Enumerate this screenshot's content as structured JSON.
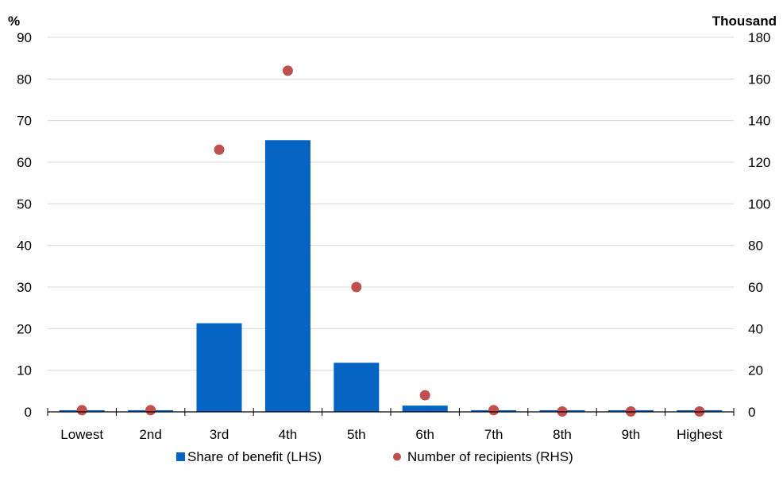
{
  "chart_data": {
    "type": "bar",
    "title": "",
    "left_unit": "%",
    "right_unit": "Thousand",
    "categories": [
      "Lowest",
      "2nd",
      "3rd",
      "4th",
      "5th",
      "6th",
      "7th",
      "8th",
      "9th",
      "Highest"
    ],
    "series": [
      {
        "name": "Share of benefit (LHS)",
        "type": "bar",
        "axis": "left",
        "color": "#0563C1",
        "values": [
          0.4,
          0.4,
          21.3,
          65.3,
          11.8,
          1.5,
          0.4,
          0.4,
          0.4,
          0.4
        ]
      },
      {
        "name": "Number of recipients (RHS)",
        "type": "scatter",
        "axis": "right",
        "color": "#C0504D",
        "values": [
          0.8,
          0.8,
          126,
          164,
          60,
          8,
          0.8,
          0.2,
          0.2,
          0.2
        ]
      }
    ],
    "yleft": {
      "lim": [
        0,
        90
      ],
      "ticks": [
        "0",
        "10",
        "20",
        "30",
        "40",
        "50",
        "60",
        "70",
        "80",
        "90"
      ]
    },
    "yright": {
      "lim": [
        0,
        180
      ],
      "ticks": [
        "0",
        "20",
        "40",
        "60",
        "80",
        "100",
        "120",
        "140",
        "160",
        "180"
      ]
    },
    "grid": true,
    "legend_position": "bottom"
  }
}
